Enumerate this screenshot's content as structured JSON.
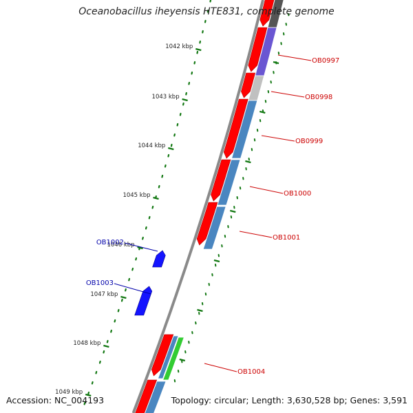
{
  "title": "Oceanobacillus iheyensis HTE831, complete genome",
  "footer": {
    "accession": "Accession: NC_004193",
    "summary": "Topology: circular; Length: 3,630,528 bp; Genes: 3,591"
  },
  "scale_labels": [
    "1042 kbp",
    "1043 kbp",
    "1044 kbp",
    "1045 kbp",
    "1046 kbp",
    "1047 kbp",
    "1048 kbp",
    "1049 kbp"
  ],
  "colors": {
    "backbone": "#8a8a8a",
    "forward_cds": "#ff0000",
    "reverse_cds": "#1414ff",
    "cog_steelblue": "#4a86c0",
    "cog_purple": "#6a56d2",
    "cog_gray": "#c0c0c0",
    "cog_dark": "#555555",
    "cog_green": "#33cc33",
    "tick": "#117711",
    "label_forward": "#cc0000",
    "label_reverse": "#0000aa"
  },
  "genes": [
    {
      "label": "OB0997",
      "strand": "forward",
      "cog_color": "purple"
    },
    {
      "label": "OB0998",
      "strand": "forward",
      "cog_color": "gray"
    },
    {
      "label": "OB0999",
      "strand": "forward",
      "cog_color": "steelblue"
    },
    {
      "label": "OB1000",
      "strand": "forward",
      "cog_color": "steelblue"
    },
    {
      "label": "OB1001",
      "strand": "forward",
      "cog_color": "steelblue"
    },
    {
      "label": "OB1002",
      "strand": "reverse",
      "cog_color": ""
    },
    {
      "label": "OB1003",
      "strand": "reverse",
      "cog_color": ""
    },
    {
      "label": "OB1004",
      "strand": "forward",
      "cog_color": "steelblue / green"
    }
  ]
}
